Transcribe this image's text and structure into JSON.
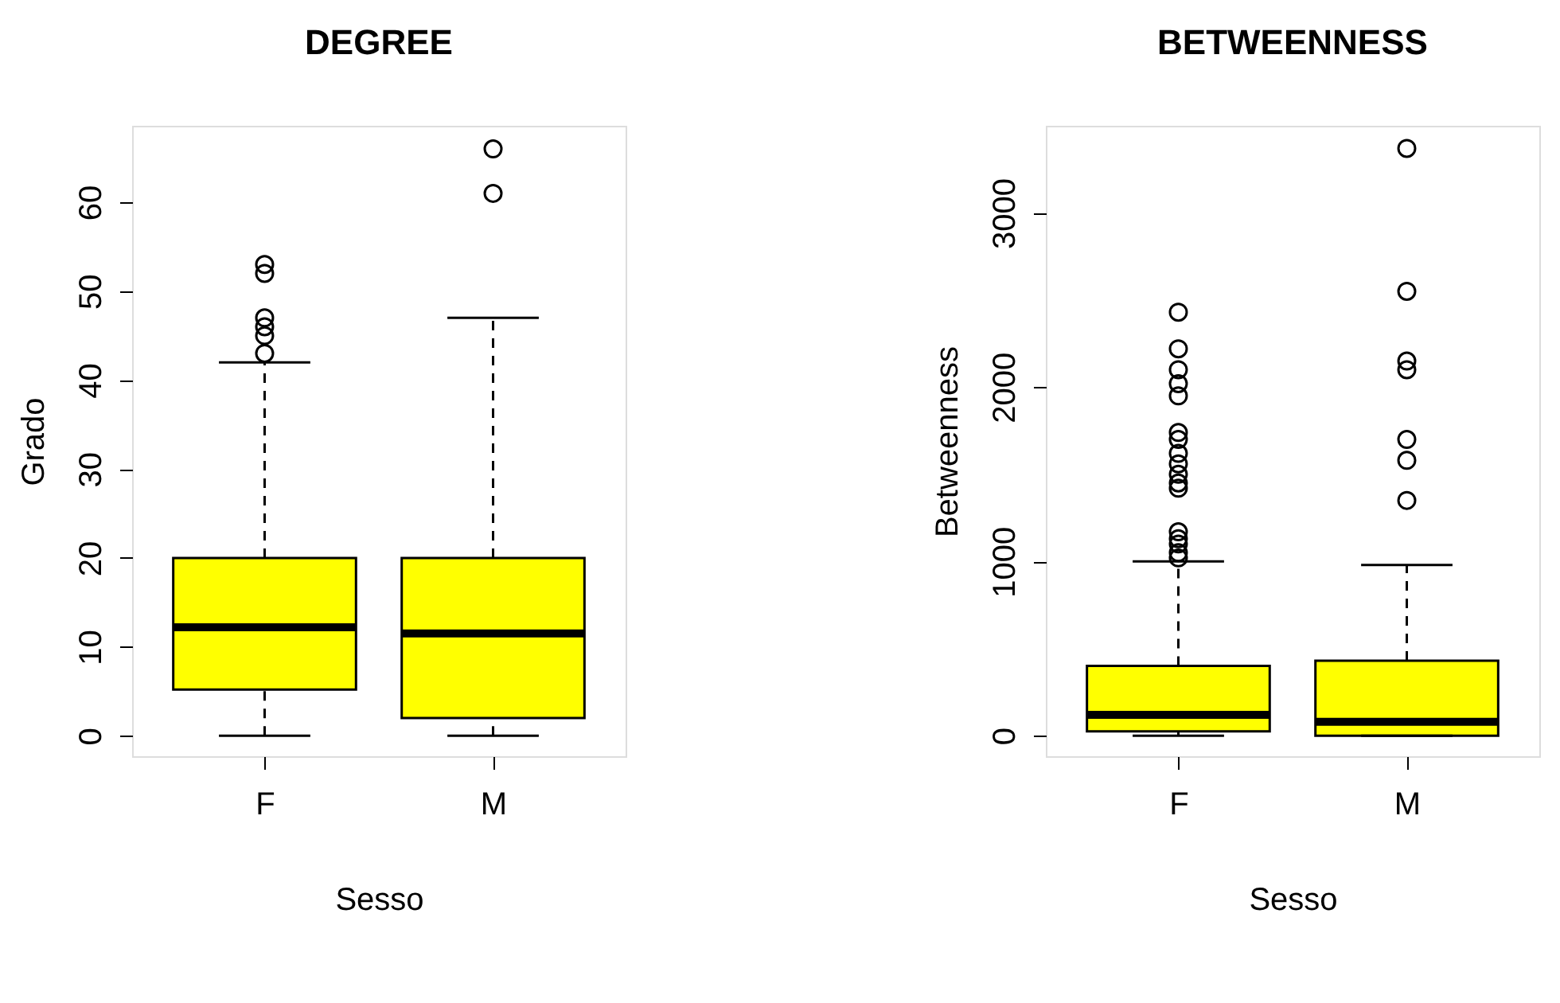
{
  "chart_data": [
    {
      "type": "box",
      "title": "DEGREE",
      "xlabel": "Sesso",
      "ylabel": "Grado",
      "categories": [
        "F",
        "M"
      ],
      "color": "#ffff00",
      "ylim": [
        -2.3,
        68.6
      ],
      "yticks": [
        0,
        10,
        20,
        30,
        40,
        50,
        60
      ],
      "grid": false,
      "legend": false,
      "boxes": [
        {
          "low": 0,
          "q1": 5.2,
          "median": 12.2,
          "q3": 20,
          "high": 42,
          "outliers": [
            43,
            45,
            46,
            47,
            52,
            53
          ]
        },
        {
          "low": 0,
          "q1": 2,
          "median": 11.5,
          "q3": 20,
          "high": 47,
          "outliers": [
            61,
            66
          ]
        }
      ]
    },
    {
      "type": "box",
      "title": "BETWEENNESS",
      "xlabel": "Sesso",
      "ylabel": "Betweenness",
      "categories": [
        "F",
        "M"
      ],
      "color": "#ffff00",
      "ylim": [
        -118,
        3500
      ],
      "yticks": [
        0,
        1000,
        2000,
        3000
      ],
      "grid": false,
      "legend": false,
      "boxes": [
        {
          "low": 0,
          "q1": 25,
          "median": 120,
          "q3": 400,
          "high": 1000,
          "outliers": [
            1020,
            1050,
            1100,
            1130,
            1170,
            1420,
            1450,
            1500,
            1560,
            1620,
            1700,
            1740,
            1950,
            2020,
            2100,
            2220,
            2430
          ]
        },
        {
          "low": 0,
          "q1": 0,
          "median": 80,
          "q3": 430,
          "high": 980,
          "outliers": [
            1350,
            1580,
            1700,
            2100,
            2150,
            2550,
            3370
          ]
        }
      ]
    }
  ]
}
